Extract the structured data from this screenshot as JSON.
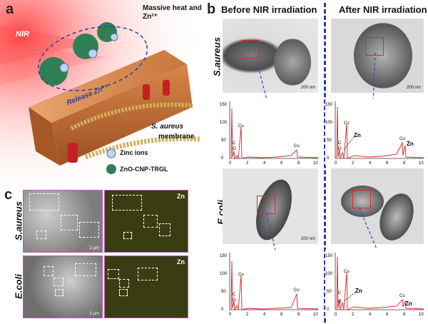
{
  "panel_a": {
    "letter": "a",
    "nir_label": "NIR",
    "heat_label": "Massive heat and Zn²⁺",
    "release_label": "Release Zn²⁺",
    "membrane_label_1": "S. aureus",
    "membrane_label_2": "membrane",
    "legend_zinc": "Zinc ions",
    "legend_np": "ZnO-CNP-TRGL"
  },
  "panel_b": {
    "letter": "b",
    "header_before": "Before NIR irradiation",
    "header_after": "After NIR irradiation",
    "row1_label": "S.aureus",
    "row2_label": "E.coli",
    "scale_bar": "200 nm",
    "eds_y_ticks": [
      "0",
      "50",
      "100",
      "150"
    ],
    "eds_x_ticks": [
      "0",
      "2",
      "4",
      "6",
      "8",
      "10"
    ],
    "cu": "Cu",
    "c": "C",
    "o": "O",
    "zn": "Zn"
  },
  "panel_c": {
    "letter": "c",
    "row1_label": "S.aureus",
    "row2_label": "E.coli",
    "zn_label": "Zn",
    "scale_bar": "2 μm"
  },
  "colors": {
    "divider": "#2a3f9e",
    "red_box": "#e0262a",
    "arrow": "#3a4fc0",
    "spectrum": "#d42020",
    "zn_map_bg": "#3a3d12"
  }
}
